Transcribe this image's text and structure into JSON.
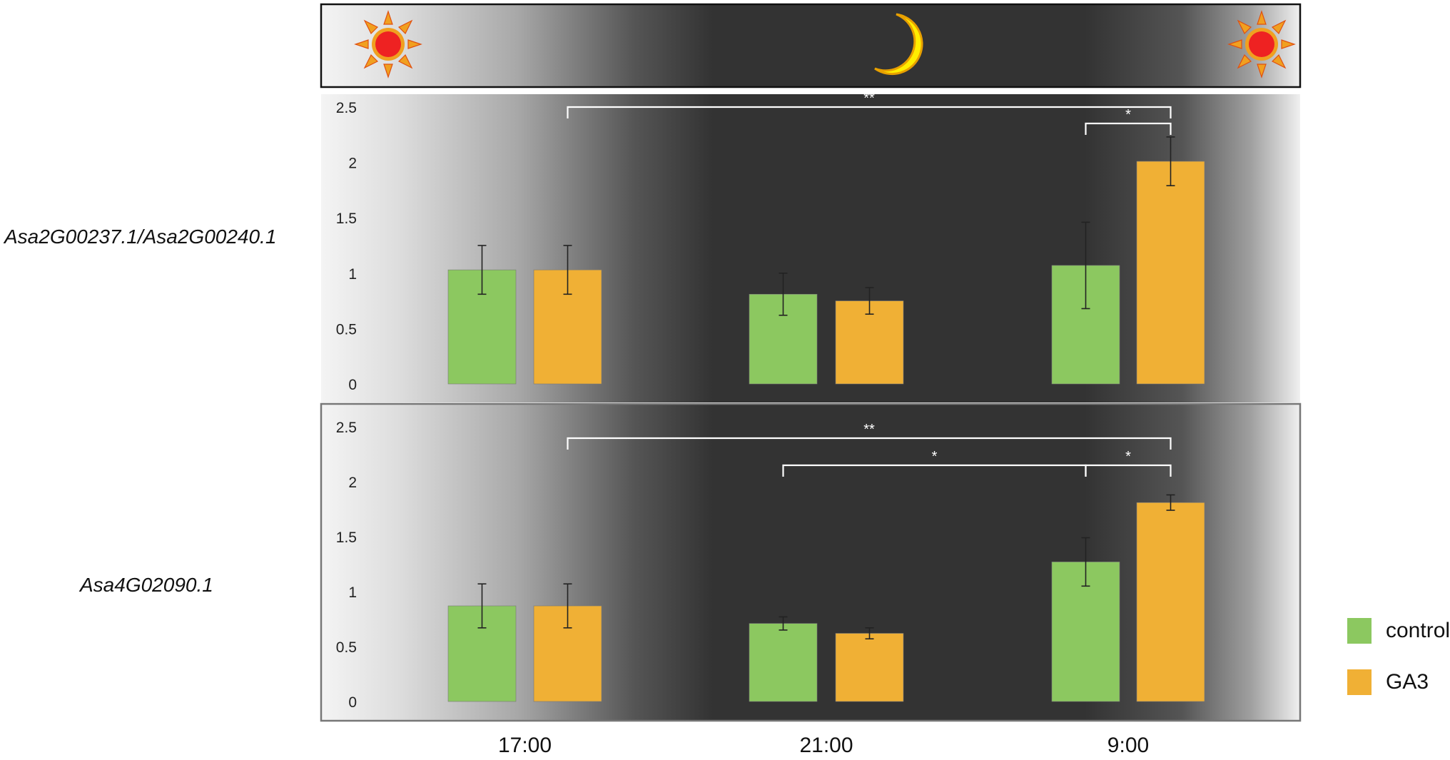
{
  "chart_data": [
    {
      "type": "bar",
      "title": "",
      "gene_label": "Asa2G00237.1/Asa2G00240.1",
      "categories": [
        "17:00",
        "21:00",
        "9:00"
      ],
      "series": [
        {
          "name": "control",
          "values": [
            1.03,
            0.81,
            1.07
          ],
          "errors": [
            0.22,
            0.19,
            0.39
          ]
        },
        {
          "name": "GA3",
          "values": [
            1.03,
            0.75,
            2.01
          ],
          "errors": [
            0.22,
            0.12,
            0.22
          ]
        }
      ],
      "yticks": [
        "2.5",
        "2",
        "1.5",
        "1",
        "0.5",
        "0"
      ],
      "ylim": [
        0,
        2.5
      ],
      "significance": [
        {
          "label": "**",
          "from": "17:00 GA3",
          "to": "9:00 GA3"
        },
        {
          "label": "*",
          "from": "9:00 control",
          "to": "9:00 GA3"
        }
      ]
    },
    {
      "type": "bar",
      "title": "",
      "gene_label": "Asa4G02090.1",
      "categories": [
        "17:00",
        "21:00",
        "9:00"
      ],
      "series": [
        {
          "name": "control",
          "values": [
            0.87,
            0.71,
            1.27
          ],
          "errors": [
            0.2,
            0.06,
            0.22
          ]
        },
        {
          "name": "GA3",
          "values": [
            0.87,
            0.62,
            1.81
          ],
          "errors": [
            0.2,
            0.05,
            0.07
          ]
        }
      ],
      "yticks": [
        "2.5",
        "2",
        "1.5",
        "1",
        "0.5",
        "0"
      ],
      "ylim": [
        0,
        2.5
      ],
      "significance": [
        {
          "label": "**",
          "from": "17:00 GA3",
          "to": "9:00 GA3"
        },
        {
          "label": "*",
          "from": "21:00 control",
          "to": "9:00 control"
        },
        {
          "label": "*",
          "from": "9:00 control",
          "to": "9:00 GA3"
        }
      ]
    }
  ],
  "legend": [
    {
      "label": "control",
      "color": "#8cc860"
    },
    {
      "label": "GA3",
      "color": "#f0b035"
    }
  ],
  "colors": {
    "control": "#8cc860",
    "GA3": "#f0b035",
    "sun": "#ee2222",
    "sun_rays": "#f0a020",
    "moon": "#ffee00",
    "night": "#333333"
  },
  "icons": [
    "sun-icon",
    "moon-icon",
    "sun-icon"
  ]
}
